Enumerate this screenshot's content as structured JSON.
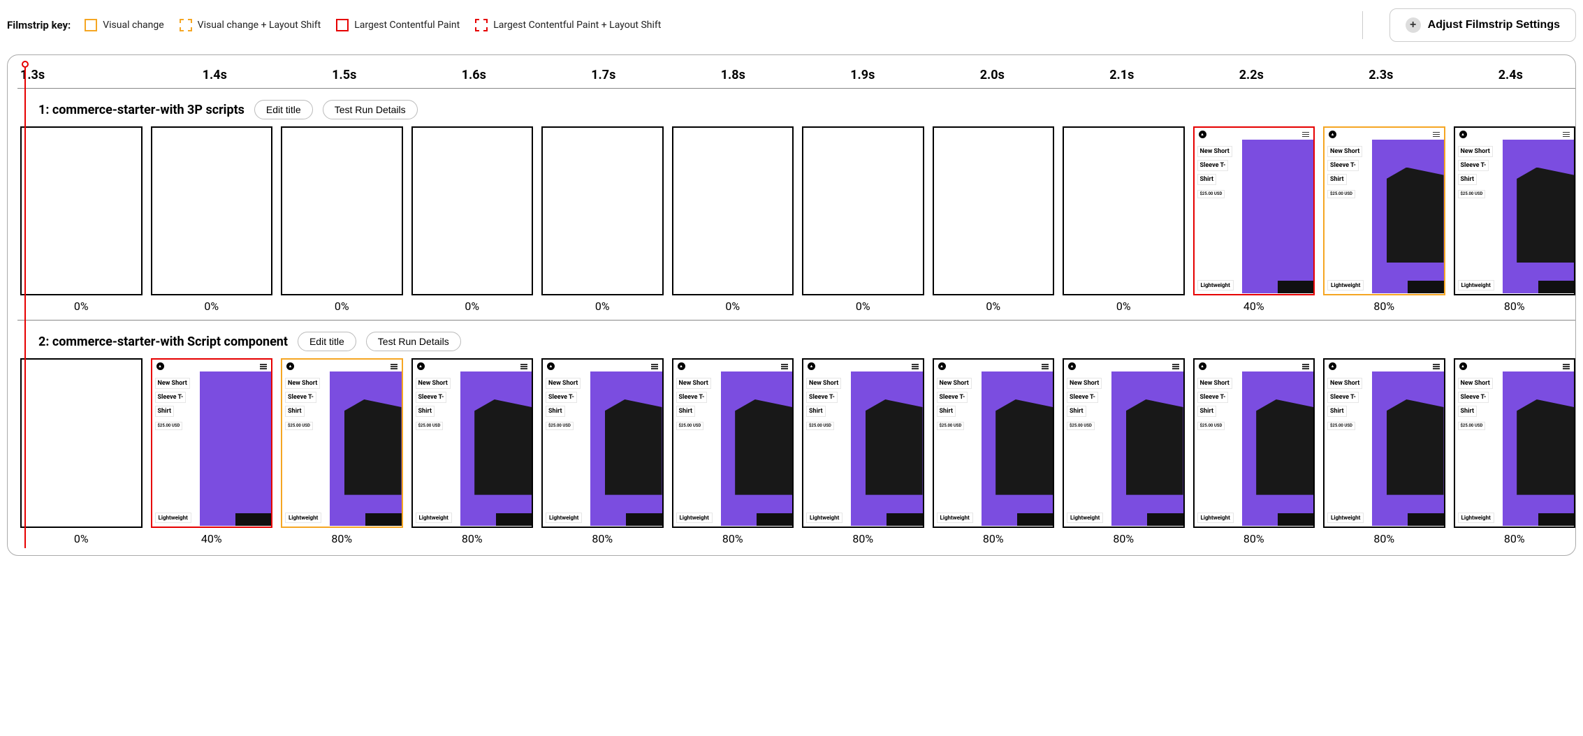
{
  "colors": {
    "orange": "#f5a623",
    "red": "#e60000",
    "purple": "#7b4de0",
    "dark": "#181818"
  },
  "legend": {
    "label": "Filmstrip key:",
    "items": [
      {
        "swatch": "orange-solid",
        "text": "Visual change"
      },
      {
        "swatch": "orange-dashed",
        "text": "Visual change + Layout Shift"
      },
      {
        "swatch": "red-solid",
        "text": "Largest Contentful Paint"
      },
      {
        "swatch": "red-dashed",
        "text": "Largest Contentful Paint + Layout Shift"
      }
    ]
  },
  "adjust_button": "Adjust Filmstrip Settings",
  "buttons": {
    "edit_title": "Edit title",
    "test_run": "Test Run Details"
  },
  "timeline": [
    "1.3s",
    "1.4s",
    "1.5s",
    "1.6s",
    "1.7s",
    "1.8s",
    "1.9s",
    "2.0s",
    "2.1s",
    "2.2s",
    "2.3s",
    "2.4s"
  ],
  "product": {
    "title_lines": [
      "New Short",
      "Sleeve T-",
      "Shirt"
    ],
    "price": "$25.00 USD",
    "badge": "Lightweight"
  },
  "rows": [
    {
      "title": "1: commerce-starter-with 3P scripts",
      "frames": [
        {
          "pct": "0%",
          "content": "blank",
          "border": "black"
        },
        {
          "pct": "0%",
          "content": "blank",
          "border": "black"
        },
        {
          "pct": "0%",
          "content": "blank",
          "border": "black"
        },
        {
          "pct": "0%",
          "content": "blank",
          "border": "black"
        },
        {
          "pct": "0%",
          "content": "blank",
          "border": "black"
        },
        {
          "pct": "0%",
          "content": "blank",
          "border": "black"
        },
        {
          "pct": "0%",
          "content": "blank",
          "border": "black"
        },
        {
          "pct": "0%",
          "content": "blank",
          "border": "black"
        },
        {
          "pct": "0%",
          "content": "blank",
          "border": "black"
        },
        {
          "pct": "40%",
          "content": "product-noimg",
          "border": "red"
        },
        {
          "pct": "80%",
          "content": "product",
          "border": "orange"
        },
        {
          "pct": "80%",
          "content": "product",
          "border": "black"
        }
      ]
    },
    {
      "title": "2: commerce-starter-with Script component",
      "frames": [
        {
          "pct": "0%",
          "content": "blank",
          "border": "black"
        },
        {
          "pct": "40%",
          "content": "product-noimg",
          "border": "red"
        },
        {
          "pct": "80%",
          "content": "product",
          "border": "orange"
        },
        {
          "pct": "80%",
          "content": "product",
          "border": "black"
        },
        {
          "pct": "80%",
          "content": "product",
          "border": "black"
        },
        {
          "pct": "80%",
          "content": "product",
          "border": "black"
        },
        {
          "pct": "80%",
          "content": "product",
          "border": "black"
        },
        {
          "pct": "80%",
          "content": "product",
          "border": "black"
        },
        {
          "pct": "80%",
          "content": "product",
          "border": "black"
        },
        {
          "pct": "80%",
          "content": "product",
          "border": "black"
        },
        {
          "pct": "80%",
          "content": "product",
          "border": "black"
        },
        {
          "pct": "80%",
          "content": "product",
          "border": "black"
        }
      ]
    }
  ]
}
